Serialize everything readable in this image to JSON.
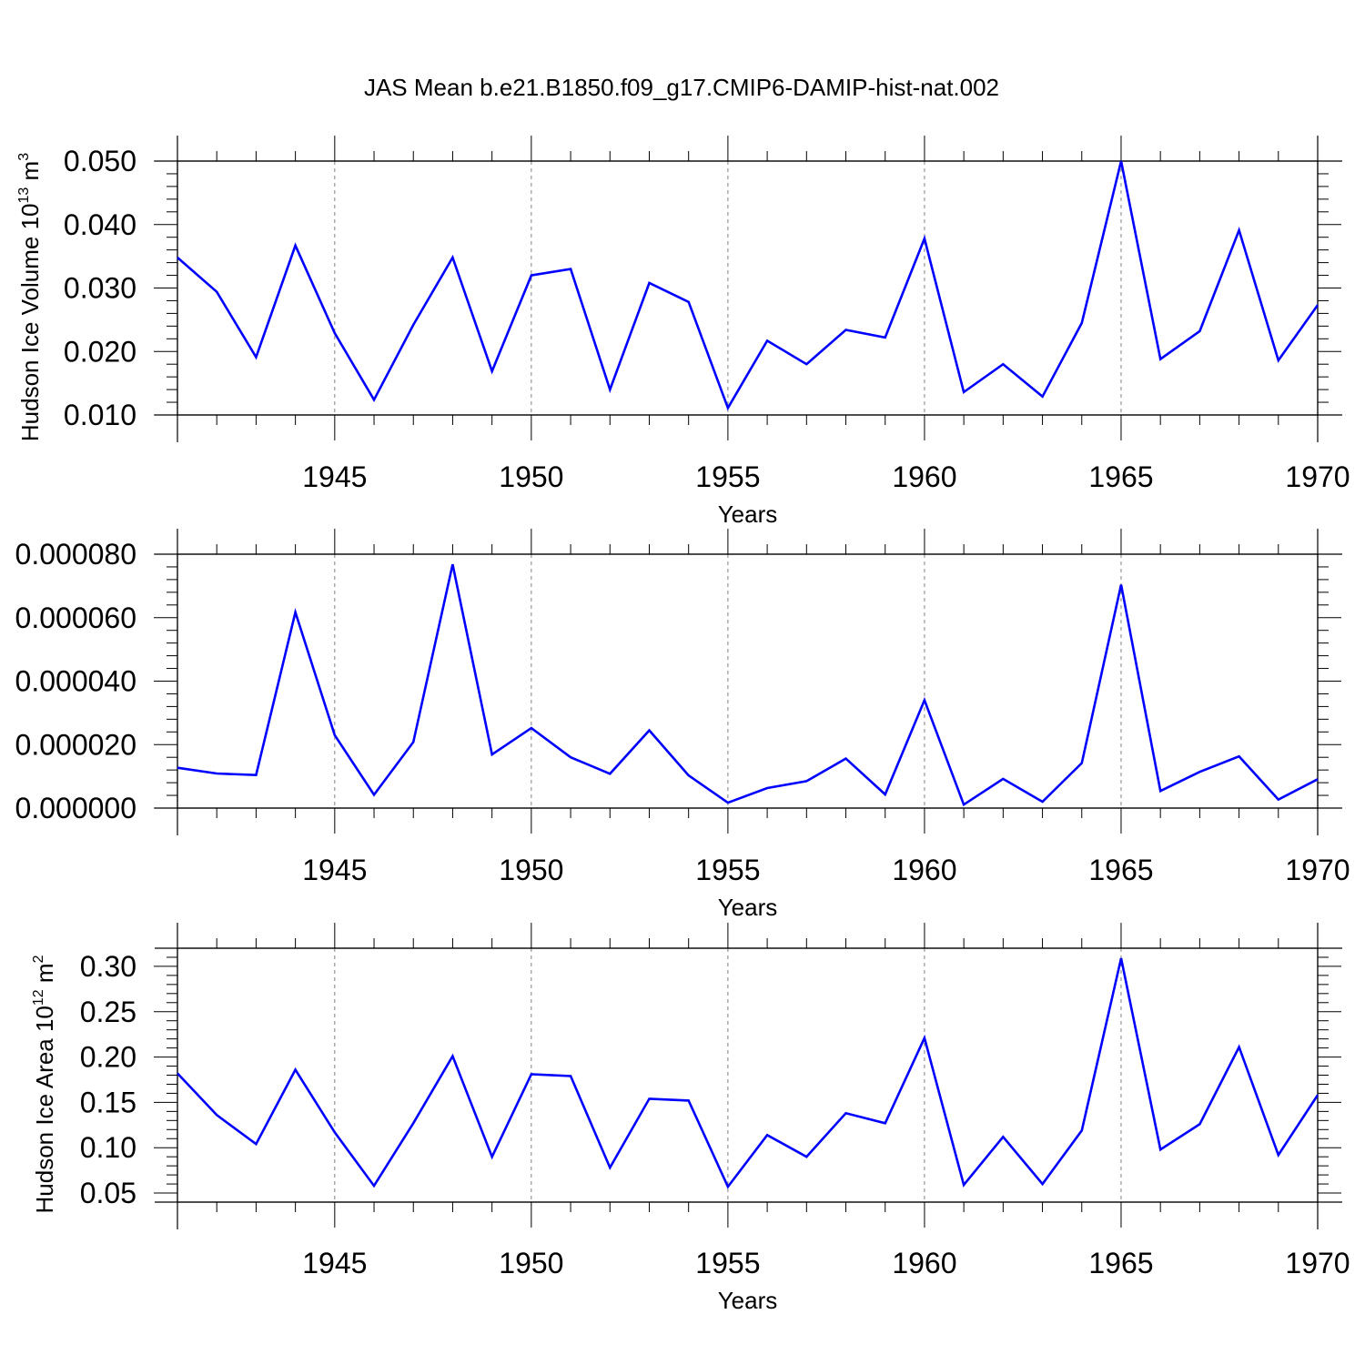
{
  "figure": {
    "title": "JAS Mean b.e21.B1850.f09_g17.CMIP6-DAMIP-hist-nat.002"
  },
  "colors": {
    "line": "#0000ff",
    "axis": "#000000",
    "grid": "#808080",
    "background": "#ffffff"
  },
  "chart_data": [
    {
      "type": "line",
      "title": "",
      "xlabel": "Years",
      "ylabel": {
        "text": "Hudson Ice Volume 10",
        "sup": "13",
        "unit": " m",
        "unit_sup": "3"
      },
      "xlim": [
        1941,
        1970
      ],
      "ylim": [
        0.01,
        0.05
      ],
      "x_ticks": [
        1945,
        1950,
        1955,
        1960,
        1965,
        1970
      ],
      "x_tick_labels": [
        "1945",
        "1950",
        "1955",
        "1960",
        "1965",
        "1970"
      ],
      "y_ticks": [
        0.01,
        0.02,
        0.03,
        0.04,
        0.05
      ],
      "y_tick_labels": [
        "0.010",
        "0.020",
        "0.030",
        "0.040",
        "0.050"
      ],
      "grid": "vertical dashed at major x ticks",
      "x": [
        1941,
        1942,
        1943,
        1944,
        1945,
        1946,
        1947,
        1948,
        1949,
        1950,
        1951,
        1952,
        1953,
        1954,
        1955,
        1956,
        1957,
        1958,
        1959,
        1960,
        1961,
        1962,
        1963,
        1964,
        1965,
        1966,
        1967,
        1968,
        1969,
        1970
      ],
      "series": [
        {
          "values": [
            0.0348,
            0.0294,
            0.0191,
            0.0367,
            0.0229,
            0.0124,
            0.0242,
            0.0348,
            0.0169,
            0.032,
            0.033,
            0.014,
            0.0308,
            0.0278,
            0.0111,
            0.0217,
            0.018,
            0.0234,
            0.0222,
            0.0378,
            0.0136,
            0.018,
            0.0129,
            0.0245,
            0.05,
            0.0188,
            0.0232,
            0.0391,
            0.0186,
            0.0273
          ]
        }
      ]
    },
    {
      "type": "line",
      "title": "",
      "xlabel": "Years",
      "ylabel": null,
      "xlim": [
        1941,
        1970
      ],
      "ylim": [
        0.0,
        8e-05
      ],
      "x_ticks": [
        1945,
        1950,
        1955,
        1960,
        1965,
        1970
      ],
      "x_tick_labels": [
        "1945",
        "1950",
        "1955",
        "1960",
        "1965",
        "1970"
      ],
      "y_ticks": [
        0.0,
        2e-05,
        4e-05,
        6e-05,
        8e-05
      ],
      "y_tick_labels": [
        "0.000000",
        "0.000020",
        "0.000040",
        "0.000060",
        "0.000080"
      ],
      "grid": "vertical dashed at major x ticks",
      "x": [
        1941,
        1942,
        1943,
        1944,
        1945,
        1946,
        1947,
        1948,
        1949,
        1950,
        1951,
        1952,
        1953,
        1954,
        1955,
        1956,
        1957,
        1958,
        1959,
        1960,
        1961,
        1962,
        1963,
        1964,
        1965,
        1966,
        1967,
        1968,
        1969,
        1970
      ],
      "series": [
        {
          "values": [
            1.27e-05,
            1.09e-05,
            1.04e-05,
            6.17e-05,
            2.3e-05,
            4.2e-06,
            2.08e-05,
            7.68e-05,
            1.69e-05,
            2.52e-05,
            1.6e-05,
            1.08e-05,
            2.45e-05,
            1.03e-05,
            1.7e-06,
            6.3e-06,
            8.5e-06,
            1.56e-05,
            4.3e-06,
            3.4e-05,
            1.1e-06,
            9.2e-06,
            2e-06,
            1.42e-05,
            7.04e-05,
            5.4e-06,
            1.14e-05,
            1.63e-05,
            2.7e-06,
            9.1e-06
          ]
        }
      ]
    },
    {
      "type": "line",
      "title": "",
      "xlabel": "Years",
      "ylabel": {
        "text": "Hudson Ice Area 10",
        "sup": "12",
        "unit": " m",
        "unit_sup": "2"
      },
      "xlim": [
        1941,
        1970
      ],
      "ylim": [
        0.04,
        0.32
      ],
      "x_ticks": [
        1945,
        1950,
        1955,
        1960,
        1965,
        1970
      ],
      "x_tick_labels": [
        "1945",
        "1950",
        "1955",
        "1960",
        "1965",
        "1970"
      ],
      "y_ticks": [
        0.05,
        0.1,
        0.15,
        0.2,
        0.25,
        0.3
      ],
      "y_tick_labels": [
        "0.05",
        "0.10",
        "0.15",
        "0.20",
        "0.25",
        "0.30"
      ],
      "grid": "vertical dashed at major x ticks",
      "x": [
        1941,
        1942,
        1943,
        1944,
        1945,
        1946,
        1947,
        1948,
        1949,
        1950,
        1951,
        1952,
        1953,
        1954,
        1955,
        1956,
        1957,
        1958,
        1959,
        1960,
        1961,
        1962,
        1963,
        1964,
        1965,
        1966,
        1967,
        1968,
        1969,
        1970
      ],
      "series": [
        {
          "values": [
            0.182,
            0.136,
            0.104,
            0.186,
            0.117,
            0.058,
            0.127,
            0.201,
            0.09,
            0.181,
            0.179,
            0.078,
            0.154,
            0.152,
            0.057,
            0.114,
            0.09,
            0.138,
            0.127,
            0.221,
            0.059,
            0.112,
            0.06,
            0.119,
            0.309,
            0.098,
            0.126,
            0.211,
            0.092,
            0.158
          ]
        }
      ]
    }
  ]
}
